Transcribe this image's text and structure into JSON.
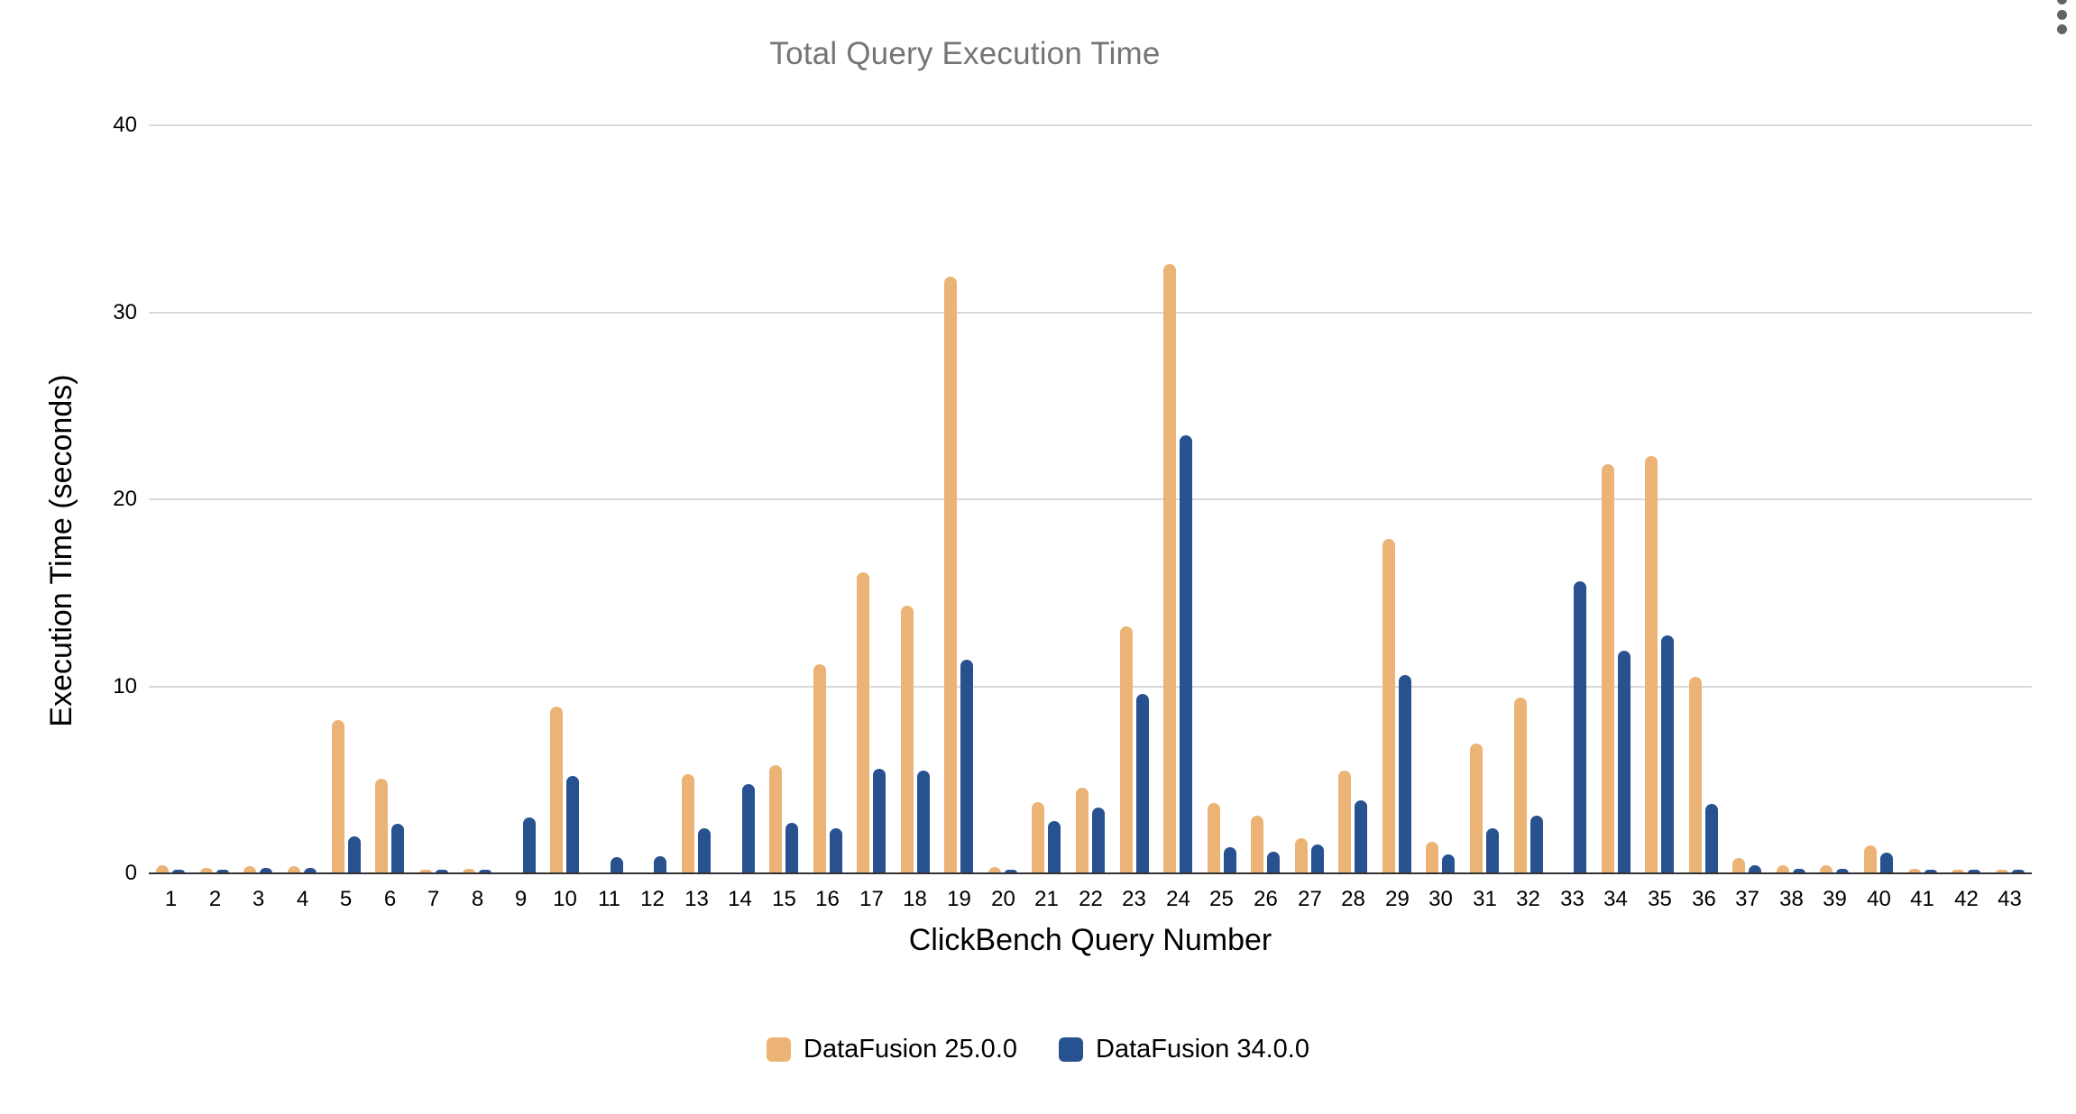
{
  "menu_icon": "kebab-menu",
  "chart_data": {
    "type": "bar",
    "title": "Total Query Execution Time",
    "xlabel": "ClickBench Query Number",
    "ylabel": "Execution Time (seconds)",
    "ylim": [
      0,
      40
    ],
    "yticks": [
      0,
      10,
      20,
      30,
      40
    ],
    "grid": true,
    "legend_position": "bottom",
    "categories": [
      1,
      2,
      3,
      4,
      5,
      6,
      7,
      8,
      9,
      10,
      11,
      12,
      13,
      14,
      15,
      16,
      17,
      18,
      19,
      20,
      21,
      22,
      23,
      24,
      25,
      26,
      27,
      28,
      29,
      30,
      31,
      32,
      33,
      34,
      35,
      36,
      37,
      38,
      39,
      40,
      41,
      42,
      43
    ],
    "series": [
      {
        "name": "DataFusion 25.0.0",
        "color": "#EBB476",
        "values": [
          0.45,
          0.3,
          0.37,
          0.37,
          8.2,
          5.05,
          0.16,
          0.24,
          0,
          8.9,
          0,
          0,
          5.3,
          0,
          5.8,
          11.2,
          16.1,
          14.3,
          31.9,
          0.36,
          3.8,
          4.6,
          13.2,
          32.6,
          3.75,
          3.1,
          1.9,
          5.5,
          17.9,
          1.7,
          6.95,
          9.4,
          0,
          21.9,
          22.3,
          10.5,
          0.8,
          0.45,
          0.45,
          1.5,
          0.25,
          0.2,
          0.2
        ]
      },
      {
        "name": "DataFusion 34.0.0",
        "color": "#27518F",
        "values": [
          0.08,
          0.05,
          0.29,
          0.27,
          1.97,
          2.65,
          0.06,
          0.05,
          3.0,
          5.2,
          0.85,
          0.9,
          2.4,
          4.75,
          2.7,
          2.4,
          5.6,
          5.5,
          11.4,
          0.1,
          2.8,
          3.5,
          9.6,
          23.4,
          1.4,
          1.17,
          1.55,
          3.9,
          10.6,
          1.0,
          2.4,
          3.1,
          15.6,
          11.9,
          12.7,
          3.7,
          0.45,
          0.25,
          0.25,
          1.1,
          0.12,
          0.12,
          0.12
        ]
      }
    ]
  }
}
